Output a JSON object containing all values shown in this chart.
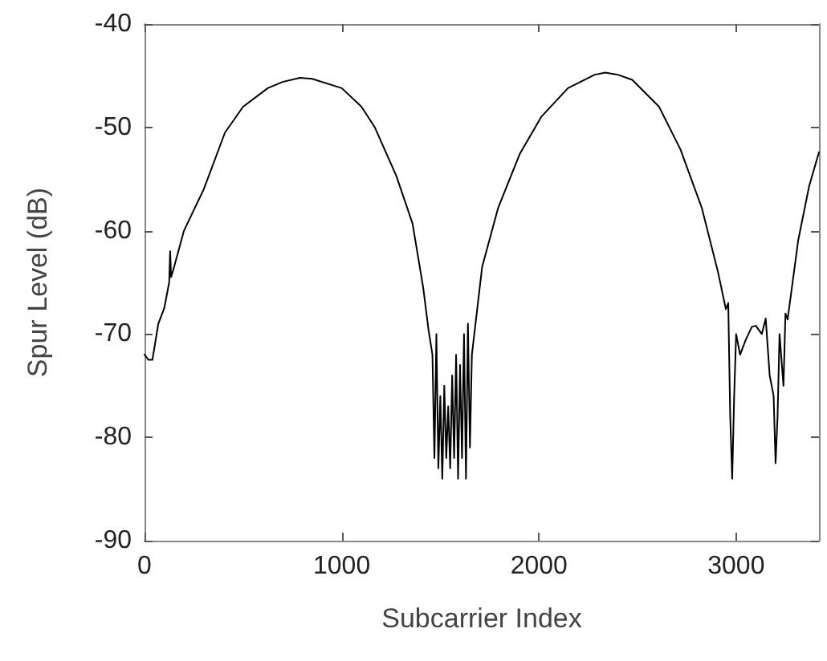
{
  "chart_data": {
    "type": "line",
    "xlabel": "Subcarrier Index",
    "ylabel": "Spur Level (dB)",
    "xlim": [
      0,
      3420
    ],
    "ylim": [
      -90,
      -40
    ],
    "xticks": [
      0,
      1000,
      2000,
      3000
    ],
    "yticks": [
      -90,
      -80,
      -70,
      -60,
      -50,
      -40
    ],
    "grid": false,
    "marker": "none",
    "line_style": "solid",
    "series": [
      {
        "color": "#000000",
        "x": [
          0,
          20,
          40,
          70,
          100,
          125,
          130,
          135,
          150,
          200,
          300,
          408,
          500,
          625,
          700,
          788,
          850,
          1000,
          1100,
          1168,
          1277,
          1359,
          1413,
          1440,
          1460,
          1470,
          1480,
          1490,
          1500,
          1510,
          1520,
          1530,
          1540,
          1550,
          1560,
          1570,
          1580,
          1590,
          1600,
          1610,
          1620,
          1630,
          1640,
          1650,
          1660,
          1712,
          1793,
          1902,
          2011,
          2147,
          2283,
          2337,
          2400,
          2473,
          2609,
          2717,
          2826,
          2908,
          2948,
          2960,
          2970,
          2980,
          2990,
          3000,
          3020,
          3050,
          3080,
          3100,
          3130,
          3150,
          3170,
          3190,
          3200,
          3210,
          3220,
          3240,
          3250,
          3261,
          3315,
          3370,
          3420
        ],
        "values": [
          -72,
          -72.5,
          -72.5,
          -69,
          -67.5,
          -65,
          -62,
          -64.5,
          -63.5,
          -60,
          -56,
          -50.5,
          -48,
          -46.2,
          -45.6,
          -45.2,
          -45.3,
          -46.2,
          -48,
          -50,
          -54.7,
          -59.3,
          -65.5,
          -69.6,
          -72,
          -82,
          -70,
          -83,
          -76,
          -84,
          -75,
          -82,
          -77,
          -83,
          -74,
          -82,
          -72,
          -84,
          -73,
          -82,
          -70,
          -84,
          -69,
          -81,
          -72,
          -63.5,
          -57.8,
          -52.6,
          -49,
          -46.2,
          -44.9,
          -44.7,
          -44.9,
          -45.4,
          -48,
          -52.1,
          -57.8,
          -64,
          -67.6,
          -67,
          -78,
          -84,
          -76,
          -70,
          -72,
          -70.5,
          -69.3,
          -69.2,
          -70,
          -68.5,
          -74,
          -76,
          -82.5,
          -78,
          -70,
          -75,
          -68,
          -68.6,
          -60.9,
          -55.7,
          -52.4
        ]
      }
    ]
  }
}
